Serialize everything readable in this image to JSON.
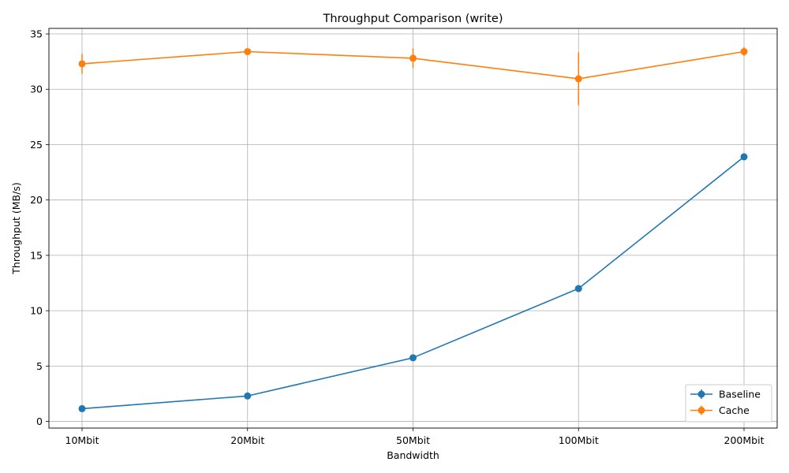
{
  "chart_data": {
    "type": "line",
    "title": "Throughput Comparison (write)",
    "xlabel": "Bandwidth",
    "ylabel": "Throughput (MB/s)",
    "categories": [
      "10Mbit",
      "20Mbit",
      "50Mbit",
      "100Mbit",
      "200Mbit"
    ],
    "ylim": [
      -0.6,
      35.5
    ],
    "yticks": [
      0,
      5,
      10,
      15,
      20,
      25,
      30,
      35
    ],
    "grid": true,
    "legend_position": "lower-right",
    "series": [
      {
        "name": "Baseline",
        "color": "#1f77b4",
        "values": [
          1.15,
          2.3,
          5.75,
          12.0,
          23.9
        ],
        "errors": [
          0.1,
          0.1,
          0.15,
          0.2,
          0.15
        ]
      },
      {
        "name": "Cache",
        "color": "#ff7f0e",
        "values": [
          32.3,
          33.4,
          32.8,
          30.95,
          33.4
        ],
        "errors": [
          0.9,
          0.2,
          0.9,
          2.4,
          0.4
        ]
      }
    ]
  }
}
